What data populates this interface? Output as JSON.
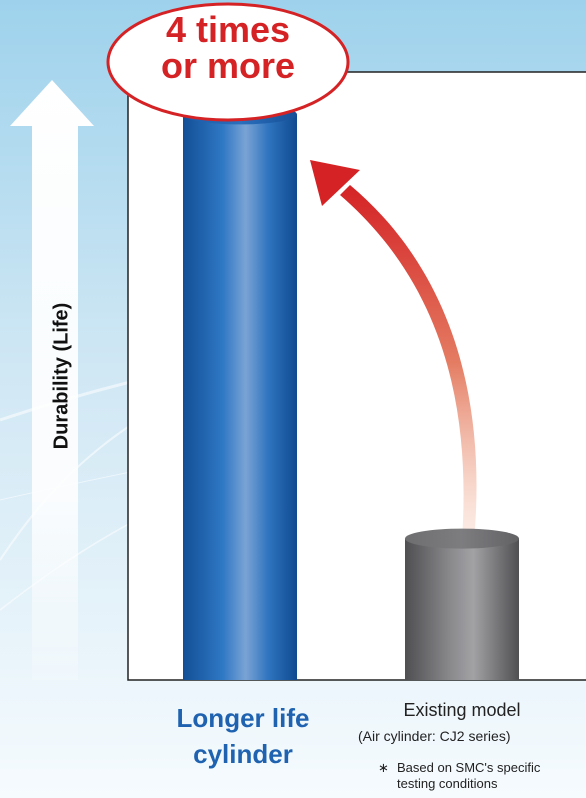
{
  "chart_data": {
    "type": "bar",
    "ylabel": "Durability (Life)",
    "categories": [
      "Longer life cylinder",
      "Existing model"
    ],
    "category_display": [
      {
        "lines": [
          "Longer life",
          "cylinder"
        ]
      },
      {
        "lines": [
          "Existing model"
        ],
        "sub": "(Air cylinder: CJ2 series)"
      }
    ],
    "values": [
      4,
      1
    ],
    "ylim": [
      0,
      4.3
    ],
    "bar_colors": [
      "#1f63b0",
      "#6e6e70"
    ],
    "annotation": {
      "line1": "4 times",
      "line2": "or more"
    },
    "arrow_color": "#d42225",
    "footnote": {
      "marker": "∗",
      "line1": "Based on SMC's specific",
      "line2": "testing conditions"
    },
    "grid": false
  }
}
